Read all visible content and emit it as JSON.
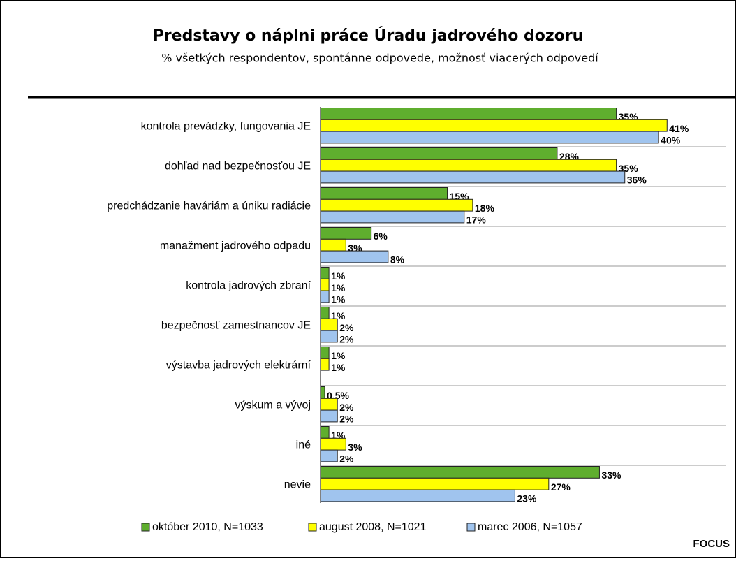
{
  "chart_data": {
    "type": "hbar",
    "title": "Predstavy o náplni práce Úradu jadrového dozoru",
    "subtitle": "% všetkých respondentov, spontánne odpovede, možnosť viacerých odpovedí",
    "categories": [
      "kontrola prevádzky, fungovania JE",
      "dohľad nad bezpečnosťou JE",
      "predchádzanie haváriám a úniku radiácie",
      "manažment jadrového odpadu",
      "kontrola jadrových zbraní",
      "bezpečnosť zamestnancov JE",
      "výstavba jadrových elektrární",
      "výskum a vývoj",
      "iné",
      "nevie"
    ],
    "series": [
      {
        "name": "október 2010, N=1033",
        "color": "#5fae2e",
        "values": [
          35,
          28,
          15,
          6,
          1,
          1,
          1,
          0.5,
          1,
          33
        ],
        "value_labels": [
          "35%",
          "28%",
          "15%",
          "6%",
          "1%",
          "1%",
          "1%",
          "0,5%",
          "1%",
          "33%"
        ]
      },
      {
        "name": "august 2008, N=1021",
        "color": "#ffff00",
        "values": [
          41,
          35,
          18,
          3,
          1,
          2,
          1,
          2,
          3,
          27
        ],
        "value_labels": [
          "41%",
          "35%",
          "18%",
          "3%",
          "1%",
          "2%",
          "1%",
          "2%",
          "3%",
          "27%"
        ]
      },
      {
        "name": "marec 2006, N=1057",
        "color": "#a0c4ee",
        "values": [
          40,
          36,
          17,
          8,
          1,
          2,
          null,
          2,
          2,
          23
        ],
        "value_labels": [
          "40%",
          "36%",
          "17%",
          "8%",
          "1%",
          "2%",
          null,
          "2%",
          "2%",
          "23%"
        ]
      }
    ],
    "xlim": [
      0,
      48
    ],
    "source": "FOCUS"
  }
}
